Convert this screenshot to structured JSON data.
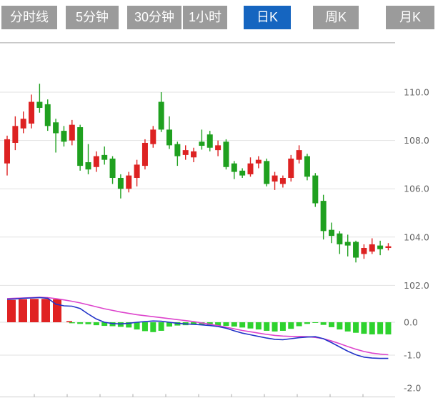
{
  "tabs": {
    "items": [
      {
        "name": "minute-line",
        "label": "分时线",
        "active": false
      },
      {
        "name": "5min",
        "label": "5分钟",
        "active": false
      },
      {
        "name": "30min",
        "label": "30分钟",
        "active": false
      },
      {
        "name": "1hour",
        "label": "1小时",
        "active": false
      },
      {
        "name": "daily-k",
        "label": "日K",
        "active": true
      },
      {
        "name": "weekly-k",
        "label": "周K",
        "active": false
      },
      {
        "name": "monthly-k",
        "label": "月K",
        "active": false
      }
    ]
  },
  "colors": {
    "tab_bg": "#9b9b9b",
    "tab_active_bg": "#1565c0",
    "tab_text": "#ffffff",
    "candle_up": "#dd2222",
    "candle_down": "#1fa01f",
    "hist_up": "#e02222",
    "hist_down": "#2ed22e",
    "dif_line": "#2233c8",
    "dea_line": "#dd44cc",
    "grid": "#e2e2e2",
    "border": "#c8c8c8",
    "axis_line": "#cccccc",
    "axis_text": "#666666"
  },
  "chart_data": {
    "type": "candlestick",
    "title": "",
    "grid": true,
    "legend": "none",
    "main_panel": {
      "ylabels": [
        {
          "text": "110.0",
          "price": 110.0
        },
        {
          "text": "108.0",
          "price": 108.0
        },
        {
          "text": "106.0",
          "price": 106.0
        },
        {
          "text": "104.0",
          "price": 104.0
        },
        {
          "text": "102.0",
          "price": 102.0
        }
      ],
      "ylim": [
        101.8,
        112.0
      ],
      "candles_ohlc": [
        [
          107.05,
          108.2,
          106.55,
          108.05
        ],
        [
          107.9,
          109.0,
          107.6,
          108.6
        ],
        [
          108.5,
          109.2,
          108.3,
          108.9
        ],
        [
          108.7,
          109.9,
          108.5,
          109.6
        ],
        [
          109.6,
          110.35,
          109.15,
          109.35
        ],
        [
          109.5,
          109.7,
          108.4,
          108.6
        ],
        [
          108.75,
          108.9,
          107.5,
          108.3
        ],
        [
          108.4,
          108.6,
          107.75,
          107.95
        ],
        [
          108.0,
          108.85,
          107.8,
          108.65
        ],
        [
          108.55,
          108.65,
          106.75,
          106.95
        ],
        [
          107.1,
          107.85,
          106.6,
          106.8
        ],
        [
          106.9,
          107.55,
          106.7,
          107.35
        ],
        [
          107.4,
          107.75,
          107.0,
          107.2
        ],
        [
          107.25,
          107.35,
          106.2,
          106.45
        ],
        [
          106.45,
          106.6,
          105.6,
          106.0
        ],
        [
          106.0,
          106.7,
          105.85,
          106.55
        ],
        [
          106.45,
          107.2,
          106.1,
          107.0
        ],
        [
          106.95,
          108.05,
          106.8,
          107.9
        ],
        [
          107.85,
          108.6,
          107.7,
          108.45
        ],
        [
          109.6,
          110.0,
          108.35,
          108.45
        ],
        [
          108.45,
          109.0,
          107.65,
          107.8
        ],
        [
          107.85,
          107.95,
          106.95,
          107.35
        ],
        [
          107.4,
          107.8,
          107.2,
          107.6
        ],
        [
          107.3,
          107.7,
          107.1,
          107.55
        ],
        [
          107.95,
          108.45,
          107.62,
          107.78
        ],
        [
          108.25,
          108.4,
          107.55,
          107.7
        ],
        [
          107.6,
          108.0,
          107.35,
          107.8
        ],
        [
          107.95,
          108.05,
          106.8,
          106.9
        ],
        [
          107.05,
          107.15,
          106.4,
          106.7
        ],
        [
          106.75,
          106.85,
          106.45,
          106.55
        ],
        [
          106.6,
          107.3,
          106.5,
          107.05
        ],
        [
          107.05,
          107.35,
          106.85,
          107.2
        ],
        [
          107.15,
          107.25,
          106.1,
          106.2
        ],
        [
          106.3,
          106.7,
          105.95,
          106.55
        ],
        [
          106.2,
          106.55,
          106.05,
          106.45
        ],
        [
          106.45,
          107.4,
          106.3,
          107.25
        ],
        [
          107.2,
          107.8,
          107.05,
          107.6
        ],
        [
          107.35,
          107.45,
          106.35,
          106.5
        ],
        [
          106.55,
          106.65,
          105.25,
          105.4
        ],
        [
          105.5,
          105.75,
          103.9,
          104.25
        ],
        [
          104.3,
          104.6,
          103.75,
          104.05
        ],
        [
          104.15,
          104.25,
          103.3,
          103.7
        ],
        [
          103.8,
          104.1,
          103.2,
          103.65
        ],
        [
          103.8,
          103.85,
          102.95,
          103.15
        ],
        [
          103.3,
          103.7,
          103.1,
          103.55
        ],
        [
          103.4,
          103.95,
          103.3,
          103.7
        ],
        [
          103.65,
          103.85,
          103.25,
          103.5
        ],
        [
          103.55,
          103.75,
          103.45,
          103.62
        ]
      ]
    },
    "indicator_panel": {
      "ylabels": [
        {
          "text": "0.0",
          "value": 0.0
        },
        {
          "text": "-1.0",
          "value": -1.0
        },
        {
          "text": "-2.0",
          "value": -2.0
        }
      ],
      "ylim": [
        -2.3,
        0.85
      ],
      "hist_red_bars": [
        {
          "x": 16,
          "v": 0.68
        },
        {
          "x": 32,
          "v": 0.7
        },
        {
          "x": 48,
          "v": 0.71
        },
        {
          "x": 64,
          "v": 0.71
        },
        {
          "x": 80,
          "v": 0.7
        },
        {
          "x": 97,
          "v": 0.03
        }
      ],
      "hist_green_start_index": 9,
      "hist_green_values": [
        -0.03,
        -0.05,
        -0.06,
        -0.09,
        -0.11,
        -0.12,
        -0.14,
        -0.16,
        -0.22,
        -0.27,
        -0.3,
        -0.26,
        -0.13,
        -0.1,
        -0.09,
        -0.08,
        -0.08,
        -0.09,
        -0.1,
        -0.11,
        -0.13,
        -0.16,
        -0.19,
        -0.22,
        -0.26,
        -0.28,
        -0.26,
        -0.2,
        -0.12,
        -0.05,
        -0.02,
        -0.08,
        -0.15,
        -0.22,
        -0.28,
        -0.32,
        -0.35,
        -0.37,
        -0.36,
        -0.37
      ],
      "dif_values": [
        0.7,
        0.71,
        0.73,
        0.74,
        0.75,
        0.73,
        0.55,
        0.5,
        0.49,
        0.42,
        0.25,
        0.1,
        0.0,
        -0.04,
        -0.05,
        -0.03,
        0.0,
        0.02,
        0.04,
        0.03,
        0.0,
        -0.03,
        -0.05,
        -0.06,
        -0.08,
        -0.1,
        -0.13,
        -0.18,
        -0.26,
        -0.33,
        -0.38,
        -0.43,
        -0.48,
        -0.52,
        -0.53,
        -0.5,
        -0.47,
        -0.45,
        -0.44,
        -0.5,
        -0.62,
        -0.75,
        -0.88,
        -0.99,
        -1.06,
        -1.09,
        -1.1,
        -1.1
      ],
      "dea_values": [
        0.72,
        0.73,
        0.74,
        0.75,
        0.76,
        0.75,
        0.72,
        0.68,
        0.64,
        0.59,
        0.53,
        0.47,
        0.41,
        0.36,
        0.31,
        0.27,
        0.23,
        0.2,
        0.17,
        0.14,
        0.11,
        0.08,
        0.05,
        0.02,
        -0.02,
        -0.06,
        -0.1,
        -0.15,
        -0.2,
        -0.25,
        -0.29,
        -0.33,
        -0.37,
        -0.4,
        -0.42,
        -0.43,
        -0.43,
        -0.44,
        -0.46,
        -0.5,
        -0.57,
        -0.65,
        -0.74,
        -0.82,
        -0.89,
        -0.94,
        -0.97,
        -0.99
      ],
      "xticks": [
        48,
        94,
        140,
        186,
        232,
        278,
        324,
        370,
        416,
        462,
        508
      ]
    }
  }
}
